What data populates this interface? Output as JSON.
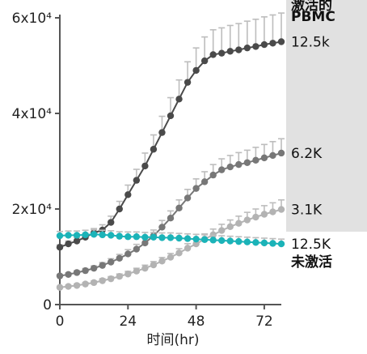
{
  "chart_data": {
    "type": "line",
    "xlabel": "时间(hr)",
    "ylabel": "",
    "xlim": [
      0,
      78
    ],
    "ylim": [
      0,
      60000
    ],
    "x_ticks": [
      0,
      24,
      48,
      72
    ],
    "y_ticks": [
      0,
      20000,
      40000,
      60000
    ],
    "x_tick_labels": [
      "0",
      "24",
      "48",
      "72"
    ],
    "y_tick_labels": [
      "0",
      "2x10⁴",
      "4x10⁴",
      "6x10⁴"
    ],
    "legend_box_lines": [
      "激活的",
      "PBMC"
    ],
    "colors": {
      "12.5k": "#4a4a4a",
      "6.2K": "#777777",
      "3.1K": "#b3b3b3",
      "12.5K 未激活": "#1bb3b8",
      "error_bar": "#bdbdbd",
      "legend_box": "#e1e1e1"
    },
    "series": [
      {
        "label_lines": [
          "12.5k"
        ],
        "x": [
          0,
          3,
          6,
          9,
          12,
          15,
          18,
          21,
          24,
          27,
          30,
          33,
          36,
          39,
          42,
          45,
          48,
          51,
          54,
          57,
          60,
          63,
          66,
          69,
          72,
          75,
          78
        ],
        "y": [
          12000,
          12700,
          13300,
          14100,
          15000,
          15600,
          17200,
          20000,
          23000,
          26000,
          29000,
          32500,
          36000,
          39500,
          43000,
          46500,
          49000,
          51000,
          52300,
          52600,
          53000,
          53300,
          53700,
          54000,
          54400,
          54700,
          55000
        ],
        "err": [
          500,
          600,
          700,
          800,
          900,
          1100,
          1300,
          1600,
          2000,
          2300,
          2700,
          3000,
          3400,
          3800,
          4000,
          4300,
          4700,
          5000,
          5200,
          5300,
          5400,
          5500,
          5600,
          5700,
          5800,
          5900,
          6000
        ]
      },
      {
        "label_lines": [
          "6.2K"
        ],
        "x": [
          0,
          3,
          6,
          9,
          12,
          15,
          18,
          21,
          24,
          27,
          30,
          33,
          36,
          39,
          42,
          45,
          48,
          51,
          54,
          57,
          60,
          63,
          66,
          69,
          72,
          75,
          78
        ],
        "y": [
          6000,
          6300,
          6700,
          7100,
          7600,
          8200,
          8900,
          9700,
          10600,
          11600,
          12900,
          14400,
          16200,
          18100,
          20200,
          22300,
          24300,
          25700,
          27100,
          28200,
          28800,
          29300,
          29700,
          30200,
          30700,
          31200,
          31700
        ],
        "err": [
          300,
          350,
          400,
          450,
          500,
          600,
          700,
          800,
          900,
          1000,
          1100,
          1200,
          1400,
          1500,
          1700,
          1800,
          2000,
          2100,
          2200,
          2300,
          2400,
          2500,
          2600,
          2700,
          2800,
          2900,
          3000
        ]
      },
      {
        "label_lines": [
          "3.1K"
        ],
        "x": [
          0,
          3,
          6,
          9,
          12,
          15,
          18,
          21,
          24,
          27,
          30,
          33,
          36,
          39,
          42,
          45,
          48,
          51,
          54,
          57,
          60,
          63,
          66,
          69,
          72,
          75,
          78
        ],
        "y": [
          3600,
          3800,
          4000,
          4300,
          4600,
          5000,
          5400,
          5900,
          6400,
          7000,
          7600,
          8300,
          9100,
          9900,
          10800,
          11800,
          12700,
          13700,
          14600,
          15500,
          16300,
          17000,
          17700,
          18300,
          18900,
          19400,
          19900
        ],
        "err": [
          200,
          250,
          300,
          300,
          350,
          400,
          450,
          500,
          550,
          600,
          650,
          700,
          750,
          800,
          900,
          950,
          1000,
          1100,
          1200,
          1300,
          1400,
          1500,
          1600,
          1700,
          1800,
          1900,
          2000
        ]
      },
      {
        "label_lines": [
          "12.5K",
          "未激活"
        ],
        "x": [
          0,
          3,
          6,
          9,
          12,
          15,
          18,
          21,
          24,
          27,
          30,
          33,
          36,
          39,
          42,
          45,
          48,
          51,
          54,
          57,
          60,
          63,
          66,
          69,
          72,
          75,
          78
        ],
        "y": [
          14400,
          14500,
          14500,
          14600,
          14700,
          14600,
          14500,
          14300,
          14200,
          14200,
          14100,
          14100,
          14000,
          14000,
          13900,
          13800,
          13700,
          13600,
          13500,
          13400,
          13300,
          13200,
          13100,
          13000,
          12900,
          12800,
          12700
        ],
        "err": [
          900,
          900,
          900,
          950,
          950,
          950,
          950,
          950,
          1000,
          1000,
          1000,
          1000,
          1000,
          1000,
          1000,
          1000,
          1000,
          1000,
          1000,
          1000,
          1000,
          1000,
          1000,
          1000,
          1000,
          1000,
          1000
        ]
      }
    ]
  }
}
